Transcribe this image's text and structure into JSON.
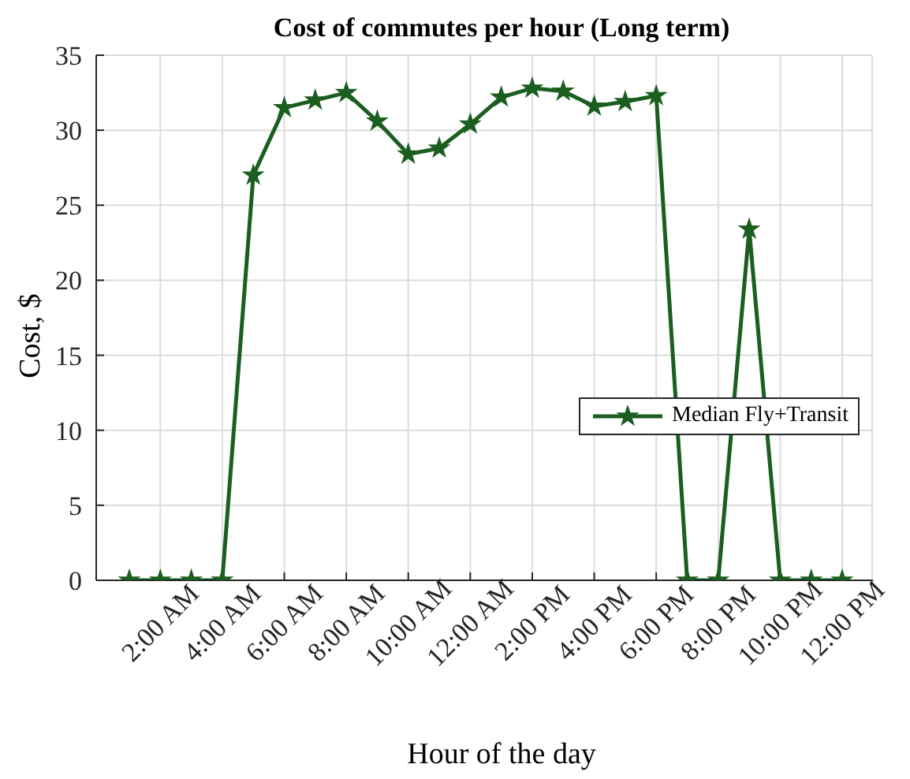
{
  "chart_data": {
    "type": "line",
    "title": "Cost of commutes per hour (Long term)",
    "xlabel": "Hour of the day",
    "ylabel": "Cost, $",
    "categories": [
      null,
      "2:00 AM",
      null,
      "4:00 AM",
      null,
      "6:00 AM",
      null,
      "8:00 AM",
      null,
      "10:00 AM",
      null,
      "12:00 AM",
      null,
      "2:00 PM",
      null,
      "4:00 PM",
      null,
      "6:00 PM",
      null,
      "8:00 PM",
      null,
      "10:00 PM",
      null,
      "12:00 PM"
    ],
    "series": [
      {
        "name": "Median Fly+Transit",
        "color": "#1b5e20",
        "values": [
          0,
          0,
          0,
          0,
          27.0,
          31.5,
          32.0,
          32.5,
          30.6,
          28.4,
          28.8,
          30.4,
          32.2,
          32.8,
          32.6,
          31.6,
          31.9,
          32.3,
          0,
          0,
          23.4,
          0,
          0,
          0
        ]
      }
    ],
    "ylim": [
      0,
      35
    ],
    "yticks": [
      0,
      5,
      10,
      15,
      20,
      25,
      30,
      35
    ],
    "grid": true,
    "legend": "right",
    "marker": "star",
    "line_style": "solid"
  }
}
